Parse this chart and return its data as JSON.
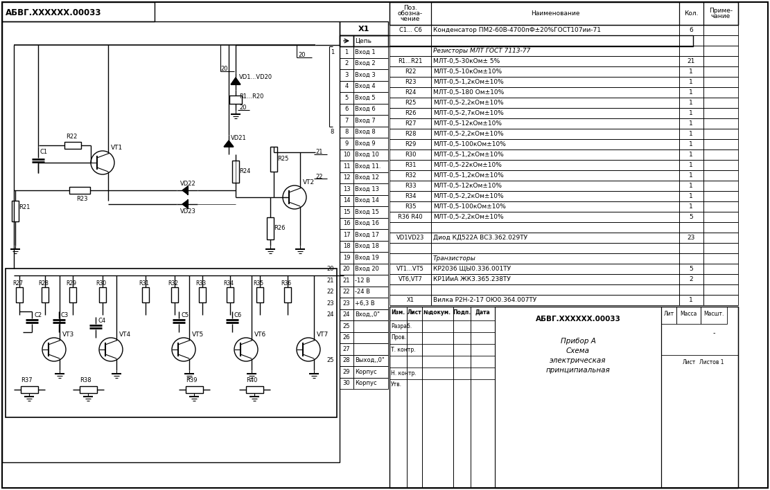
{
  "bg_color": "#ffffff",
  "fig_w": 11.11,
  "fig_h": 7.08,
  "dpi": 100,
  "bom_rows": [
    [
      "C1... C6",
      "Конденсатор ПМ2-60В-4700пФ±20%ГОСТ107ии-71",
      "6"
    ],
    [
      "",
      "",
      ""
    ],
    [
      "",
      "Резисторы МЛТ ГОСТ 7113-77",
      ""
    ],
    [
      "R1...R21",
      "МЛТ-0,5-30кОм± 5%",
      "21"
    ],
    [
      "R22",
      "МЛТ-0,5-10кОм±10%",
      "1"
    ],
    [
      "R23",
      "МЛТ-0,5-1,2кОм±10%",
      "1"
    ],
    [
      "R24",
      "МЛТ-0,5-180 Ом±10%",
      "1"
    ],
    [
      "R25",
      "МЛТ-0,5-2,2кОм±10%",
      "1"
    ],
    [
      "R26",
      "МЛТ-0,5-2,7кОм±10%",
      "1"
    ],
    [
      "R27",
      "МЛТ-0,5-12кОм±10%",
      "1"
    ],
    [
      "R28",
      "МЛТ-0,5-2,2кОм±10%",
      "1"
    ],
    [
      "R29",
      "МЛТ-0,5-100кОм±10%",
      "1"
    ],
    [
      "R30",
      "МЛТ-0,5-1,2кОм±10%",
      "1"
    ],
    [
      "R31",
      "МЛТ-0,5-22кОм±10%",
      "1"
    ],
    [
      "R32",
      "МЛТ-0,5-1,2кОм±10%",
      "1"
    ],
    [
      "R33",
      "МЛТ-0,5-12кОм±10%",
      "1"
    ],
    [
      "R34",
      "МЛТ-0,5-2,2кОм±10%",
      "1"
    ],
    [
      "R35",
      "МЛТ-0,5-100кОм±10%",
      "1"
    ],
    [
      "R36 R40",
      "МЛТ-0,5-2,2кОм±10%",
      "5"
    ],
    [
      "",
      "",
      ""
    ],
    [
      "VD1VD23",
      "Диод КД522А ВС3.362.029ТУ",
      "23"
    ],
    [
      "",
      "",
      ""
    ],
    [
      "",
      "Транзисторы",
      ""
    ],
    [
      "VT1...VT5",
      "КР2036 ЩЫ0.336.001ТУ",
      "5"
    ],
    [
      "VT6,VT7",
      "КР1ИиА ЖК3.365.238ТУ",
      "2"
    ],
    [
      "",
      "",
      ""
    ],
    [
      "X1",
      "Вилка Р2Н-2-17 ОЮ0.364.007ТУ",
      "1"
    ]
  ],
  "connector_rows": [
    [
      "1",
      "Вход 1"
    ],
    [
      "2",
      "Вход 2"
    ],
    [
      "3",
      "Вход 3"
    ],
    [
      "4",
      "Вход 4"
    ],
    [
      "5",
      "Вход 5"
    ],
    [
      "6",
      "Вход 6"
    ],
    [
      "7",
      "Вход 7"
    ],
    [
      "8",
      "Вход 8"
    ],
    [
      "9",
      "Вход 9"
    ],
    [
      "10",
      "Вход 10"
    ],
    [
      "11",
      "Вход 11."
    ],
    [
      "12",
      "Вход 12"
    ],
    [
      "13",
      "Вход 13"
    ],
    [
      "14",
      "Вход 14"
    ],
    [
      "15",
      "Вход 15"
    ],
    [
      "16",
      "Вход 16"
    ],
    [
      "17",
      "Вход 17"
    ],
    [
      "18",
      "Вход 18"
    ],
    [
      "19",
      "Вход 19"
    ],
    [
      "20",
      "Вход 20"
    ],
    [
      "21",
      "-12 В"
    ],
    [
      "22",
      "-24 В"
    ],
    [
      "23",
      "+6,3 В"
    ],
    [
      "24",
      "Вход,,0\""
    ],
    [
      "25",
      ""
    ],
    [
      "26",
      ""
    ],
    [
      "27",
      ""
    ],
    [
      "28",
      "Выход,,0\""
    ],
    [
      "29",
      "Корпус"
    ],
    [
      "30",
      "Корпус"
    ]
  ]
}
